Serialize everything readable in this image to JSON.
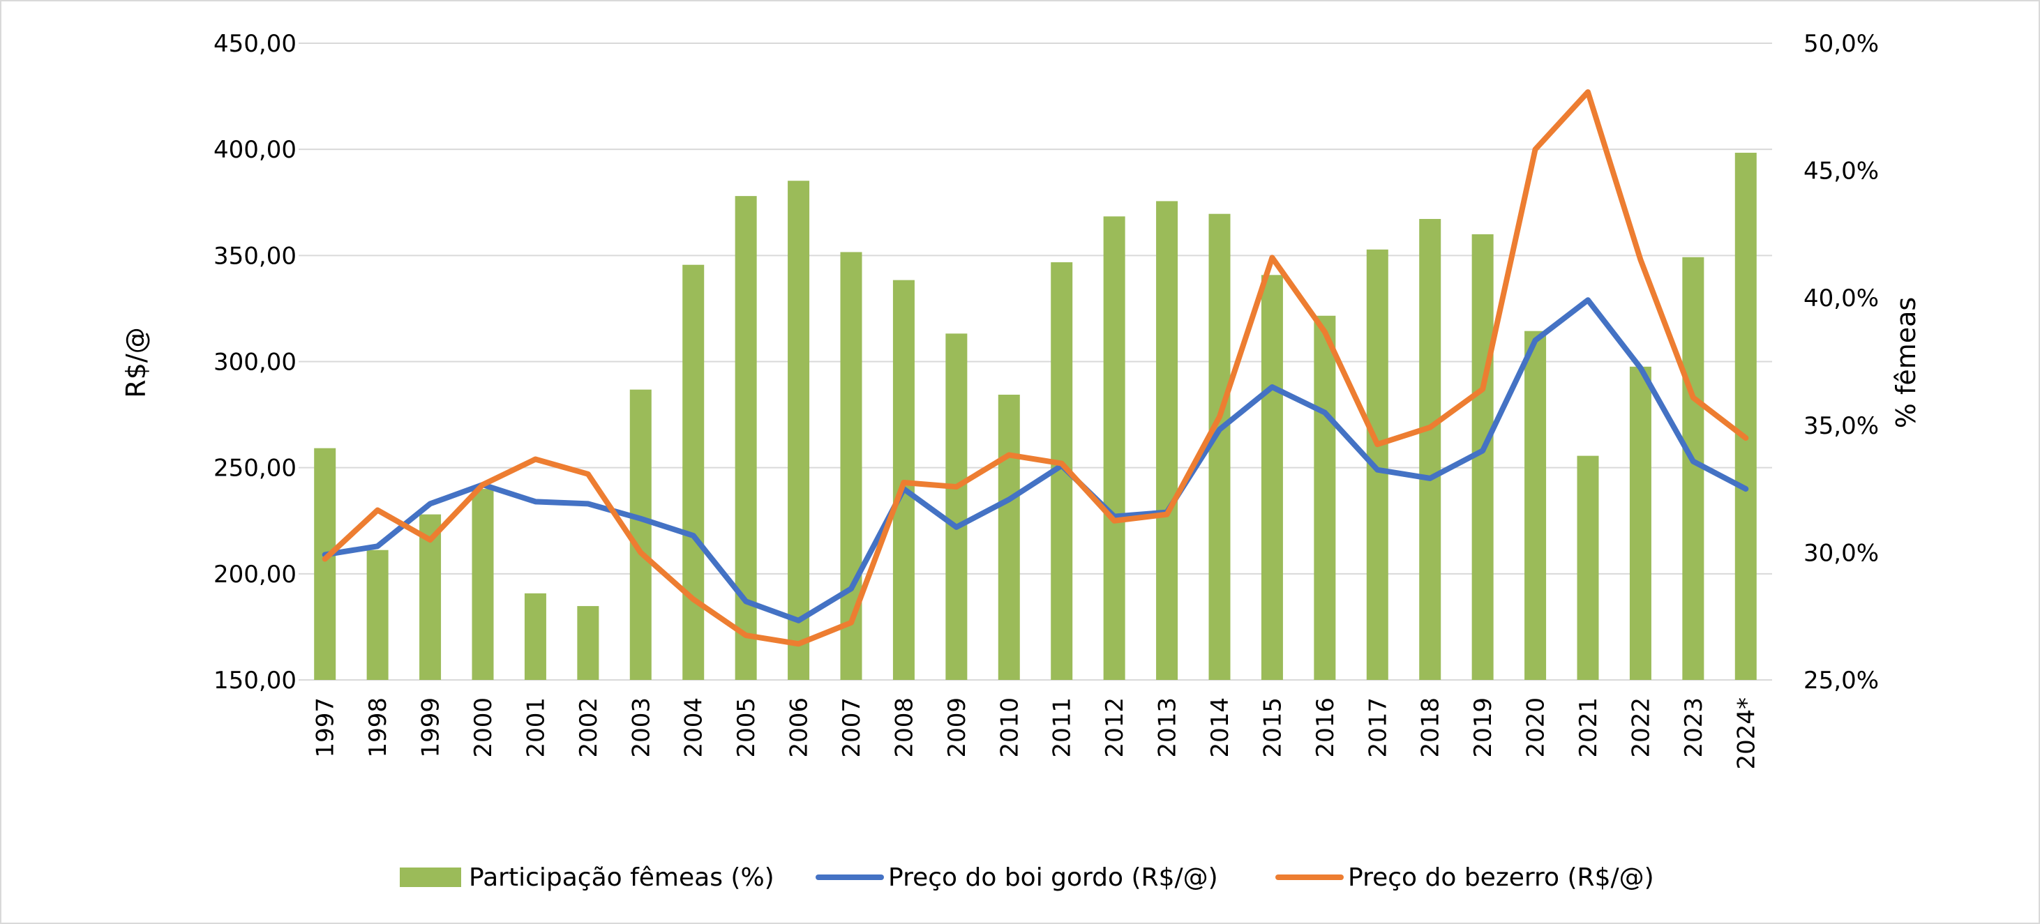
{
  "chart_data": {
    "type": "bar+line",
    "title": "",
    "categories": [
      "1997",
      "1998",
      "1999",
      "2000",
      "2001",
      "2002",
      "2003",
      "2004",
      "2005",
      "2006",
      "2007",
      "2008",
      "2009",
      "2010",
      "2011",
      "2012",
      "2013",
      "2014",
      "2015",
      "2016",
      "2017",
      "2018",
      "2019",
      "2020",
      "2021",
      "2022",
      "2023",
      "2024*"
    ],
    "ylabel_left": "R$/@",
    "ylabel_right": "% fêmeas",
    "ylim_left": [
      150,
      450
    ],
    "ylim_right": [
      25,
      50
    ],
    "yticks_left": [
      "150,00",
      "200,00",
      "250,00",
      "300,00",
      "350,00",
      "400,00",
      "450,00"
    ],
    "yticks_right": [
      "25,0%",
      "30,0%",
      "35,0%",
      "40,0%",
      "45,0%",
      "50,0%"
    ],
    "grid": true,
    "legend_position": "bottom",
    "series": [
      {
        "name": "Participação fêmeas (%)",
        "type": "bar",
        "axis": "right",
        "color": "#9bbb59",
        "values": [
          34.1,
          30.1,
          31.5,
          32.5,
          28.4,
          27.9,
          36.4,
          41.3,
          44.0,
          44.6,
          41.8,
          40.7,
          38.6,
          36.2,
          41.4,
          43.2,
          43.8,
          43.3,
          40.9,
          39.3,
          41.9,
          43.1,
          42.5,
          38.7,
          33.8,
          37.3,
          41.6,
          45.7
        ]
      },
      {
        "name": "Preço do boi gordo (R$/@)",
        "type": "line",
        "axis": "left",
        "color": "#4472c4",
        "values": [
          209,
          213,
          233,
          242,
          234,
          233,
          226,
          218,
          187,
          178,
          193,
          240,
          222,
          235,
          251,
          227,
          229,
          268,
          288,
          276,
          249,
          245,
          258,
          310,
          329,
          297,
          253,
          240
        ]
      },
      {
        "name": "Preço do bezerro (R$/@)",
        "type": "line",
        "axis": "left",
        "color": "#ed7d31",
        "values": [
          207,
          230,
          216,
          242,
          254,
          247,
          210,
          188,
          171,
          167,
          177,
          243,
          241,
          256,
          252,
          225,
          228,
          274,
          349,
          314,
          261,
          269,
          287,
          400,
          427,
          348,
          283,
          264
        ]
      }
    ]
  }
}
